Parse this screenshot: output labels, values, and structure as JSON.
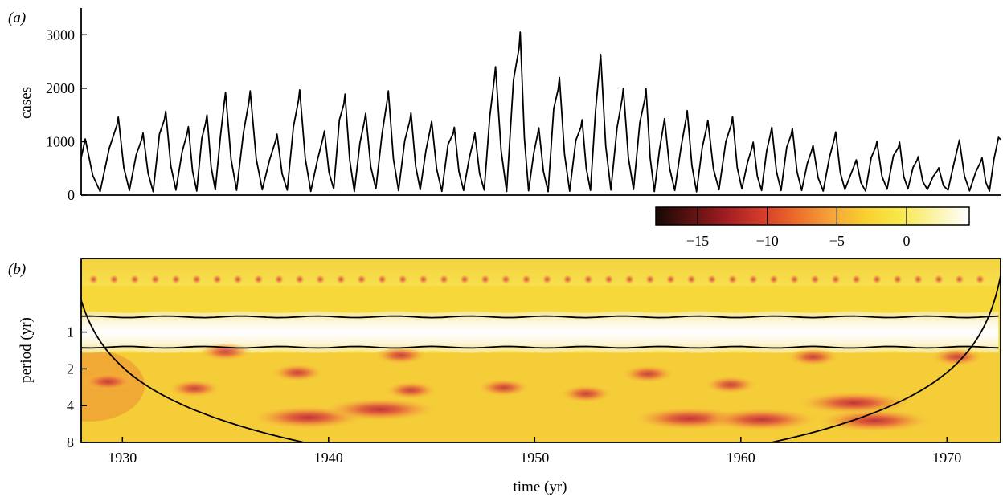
{
  "chart_data": [
    {
      "panel": "(a)",
      "type": "line",
      "ylabel": "cases",
      "xlim": [
        1928,
        1972.6
      ],
      "ylim": [
        0,
        3500
      ],
      "yticks": [
        0,
        1000,
        2000,
        3000
      ],
      "ytick_labels": [
        "0",
        "1000",
        "2000",
        "3000"
      ],
      "peaks": [
        {
          "x": 1928.2,
          "y": 1050
        },
        {
          "x": 1929.8,
          "y": 1460
        },
        {
          "x": 1931.0,
          "y": 1160
        },
        {
          "x": 1932.1,
          "y": 1570
        },
        {
          "x": 1933.2,
          "y": 1280
        },
        {
          "x": 1934.1,
          "y": 1500
        },
        {
          "x": 1935.0,
          "y": 1920
        },
        {
          "x": 1936.2,
          "y": 1950
        },
        {
          "x": 1937.5,
          "y": 1140
        },
        {
          "x": 1938.6,
          "y": 1970
        },
        {
          "x": 1939.8,
          "y": 1200
        },
        {
          "x": 1940.8,
          "y": 1890
        },
        {
          "x": 1941.8,
          "y": 1530
        },
        {
          "x": 1942.9,
          "y": 1950
        },
        {
          "x": 1944.0,
          "y": 1540
        },
        {
          "x": 1945.0,
          "y": 1380
        },
        {
          "x": 1946.1,
          "y": 1270
        },
        {
          "x": 1947.1,
          "y": 1160
        },
        {
          "x": 1948.1,
          "y": 2400
        },
        {
          "x": 1949.3,
          "y": 3050
        },
        {
          "x": 1950.2,
          "y": 1260
        },
        {
          "x": 1951.2,
          "y": 2200
        },
        {
          "x": 1952.3,
          "y": 1410
        },
        {
          "x": 1953.2,
          "y": 2630
        },
        {
          "x": 1954.3,
          "y": 2000
        },
        {
          "x": 1955.4,
          "y": 1990
        },
        {
          "x": 1956.3,
          "y": 1430
        },
        {
          "x": 1957.4,
          "y": 1580
        },
        {
          "x": 1958.4,
          "y": 1400
        },
        {
          "x": 1959.6,
          "y": 1470
        },
        {
          "x": 1960.6,
          "y": 990
        },
        {
          "x": 1961.5,
          "y": 1270
        },
        {
          "x": 1962.5,
          "y": 1250
        },
        {
          "x": 1963.5,
          "y": 930
        },
        {
          "x": 1964.6,
          "y": 1180
        },
        {
          "x": 1965.6,
          "y": 660
        },
        {
          "x": 1966.6,
          "y": 1000
        },
        {
          "x": 1967.7,
          "y": 990
        },
        {
          "x": 1968.6,
          "y": 720
        },
        {
          "x": 1969.6,
          "y": 510
        },
        {
          "x": 1970.6,
          "y": 1030
        },
        {
          "x": 1971.7,
          "y": 700
        },
        {
          "x": 1972.5,
          "y": 1080
        }
      ]
    },
    {
      "panel": "(b)",
      "type": "heatmap",
      "xlabel": "time (yr)",
      "ylabel": "period (yr)",
      "xlim": [
        1928,
        1972.6
      ],
      "ylim": [
        0.25,
        8
      ],
      "yscale": "log2",
      "xticks": [
        1930,
        1940,
        1950,
        1960,
        1970
      ],
      "xtick_labels": [
        "1930",
        "1940",
        "1950",
        "1960",
        "1970"
      ],
      "yticks": [
        1,
        2,
        4,
        8
      ],
      "ytick_labels": [
        "1",
        "2",
        "4",
        "8"
      ],
      "colorbar": {
        "range": [
          -18,
          4.5
        ],
        "ticks": [
          -15,
          -10,
          -5,
          0
        ],
        "tick_labels": [
          "−15",
          "−10",
          "−5",
          "0"
        ]
      },
      "annual_band_period": [
        0.75,
        1.33
      ],
      "low_power_spots": [
        {
          "x": 1929.3,
          "period": 2.55
        },
        {
          "x": 1933.5,
          "period": 2.9
        },
        {
          "x": 1935.0,
          "period": 1.45
        },
        {
          "x": 1938.5,
          "period": 2.15
        },
        {
          "x": 1939.0,
          "period": 5.0
        },
        {
          "x": 1943.5,
          "period": 1.55
        },
        {
          "x": 1942.5,
          "period": 4.3
        },
        {
          "x": 1944.0,
          "period": 3.0
        },
        {
          "x": 1948.5,
          "period": 2.85
        },
        {
          "x": 1952.5,
          "period": 3.2
        },
        {
          "x": 1955.5,
          "period": 2.2
        },
        {
          "x": 1957.5,
          "period": 5.1
        },
        {
          "x": 1959.5,
          "period": 2.7
        },
        {
          "x": 1961.0,
          "period": 5.2
        },
        {
          "x": 1963.5,
          "period": 1.6
        },
        {
          "x": 1965.5,
          "period": 3.8
        },
        {
          "x": 1966.5,
          "period": 5.3
        },
        {
          "x": 1970.5,
          "period": 1.6
        }
      ]
    }
  ],
  "colors": {
    "line": "#000000",
    "cmap": [
      "#170805",
      "#5c1210",
      "#a01c22",
      "#d23a2a",
      "#ec6b2a",
      "#f6a23a",
      "#f8cf2e",
      "#f8e84a",
      "#fbf3a8",
      "#ffffff"
    ]
  }
}
